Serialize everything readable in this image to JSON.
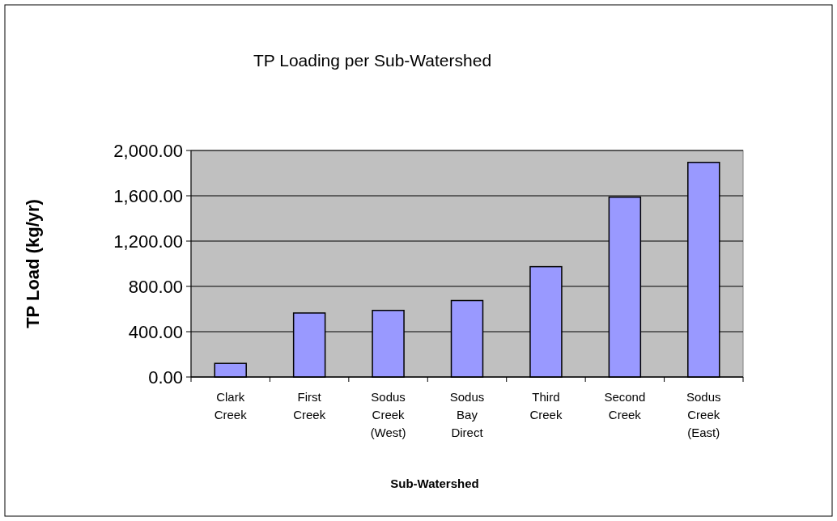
{
  "chart_data": {
    "type": "bar",
    "title": "TP Loading per Sub-Watershed",
    "xlabel": "Sub-Watershed",
    "ylabel": "TP Load (kg/yr)",
    "categories": [
      "Clark Creek",
      "First Creek",
      "Sodus Creek (West)",
      "Sodus Bay Direct",
      "Third Creek",
      "Second Creek",
      "Sodus Creek (East)"
    ],
    "values": [
      120,
      565,
      588,
      675,
      974,
      1588,
      1895
    ],
    "color": "#9999ff",
    "ylim": [
      0,
      2000
    ],
    "yticks": [
      {
        "value": 0,
        "label": "0.00"
      },
      {
        "value": 400,
        "label": "400.00"
      },
      {
        "value": 800,
        "label": "800.00"
      },
      {
        "value": 1200,
        "label": "1,200.00"
      },
      {
        "value": 1600,
        "label": "1,600.00"
      },
      {
        "value": 2000,
        "label": "2,000.00"
      }
    ],
    "grid": "y"
  }
}
